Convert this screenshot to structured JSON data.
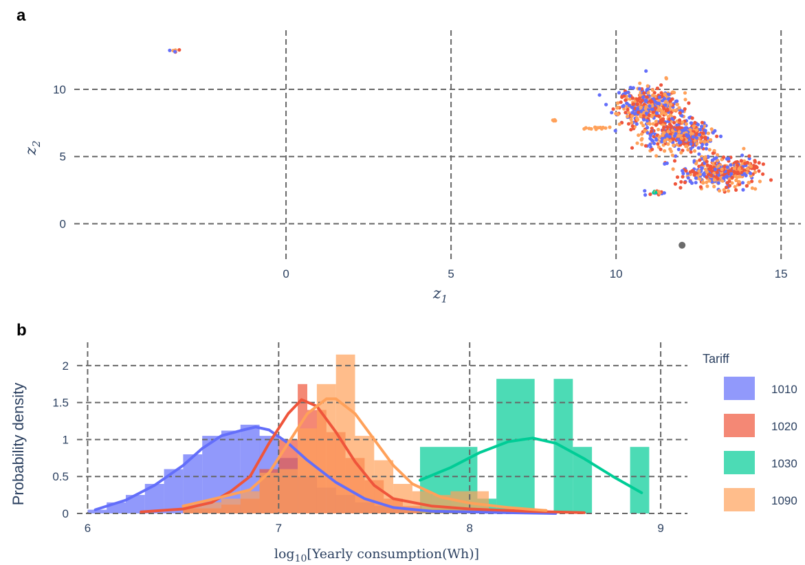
{
  "chart_data": [
    {
      "panel": "a",
      "type": "scatter",
      "xlabel": "z1",
      "ylabel": "z2",
      "xlim": [
        -7,
        15.6
      ],
      "ylim": [
        -3.3,
        14.6
      ],
      "xticks": [
        0,
        5,
        10,
        15
      ],
      "yticks": [
        0,
        5,
        10
      ],
      "grid": true,
      "colors": {
        "1010": "#636efa",
        "1020": "#ef553b",
        "1030": "#00cc96",
        "1090": "#ffa15a",
        "other": "#6b6b6b"
      },
      "clusters": [
        {
          "center": [
            -3.4,
            12.9
          ],
          "spread": [
            0.12,
            0.08
          ],
          "n": 6,
          "series": [
            "1090",
            "1010",
            "1020"
          ]
        },
        {
          "center": [
            8.1,
            7.7
          ],
          "spread": [
            0.06,
            0.03
          ],
          "n": 4,
          "series": [
            "1090"
          ]
        },
        {
          "center": [
            9.5,
            7.1
          ],
          "spread": [
            0.25,
            0.06
          ],
          "n": 14,
          "series": [
            "1090"
          ]
        },
        {
          "center": [
            11.0,
            8.7
          ],
          "spread": [
            0.45,
            0.7
          ],
          "n": 450,
          "series": [
            "1020",
            "1010",
            "1090"
          ]
        },
        {
          "center": [
            11.9,
            6.6
          ],
          "spread": [
            0.5,
            0.55
          ],
          "n": 420,
          "series": [
            "1020",
            "1010",
            "1090"
          ]
        },
        {
          "center": [
            13.2,
            3.8
          ],
          "spread": [
            0.55,
            0.55
          ],
          "n": 420,
          "series": [
            "1020",
            "1010",
            "1090"
          ]
        },
        {
          "center": [
            11.1,
            2.3
          ],
          "spread": [
            0.25,
            0.08
          ],
          "n": 18,
          "series": [
            "1010",
            "1020",
            "1030",
            "1090"
          ]
        }
      ],
      "outlier": {
        "x": 12.0,
        "y": -1.6,
        "series": "other"
      }
    },
    {
      "panel": "b",
      "type": "bar",
      "xlabel": "log10[Yearly consumption(Wh)]",
      "ylabel": "Probability density",
      "xlim": [
        5.93,
        9.14
      ],
      "ylim": [
        0,
        2.25
      ],
      "xticks": [
        6,
        7,
        8,
        9
      ],
      "yticks": [
        0,
        0.5,
        1,
        1.5,
        2
      ],
      "ytick_labels": [
        "0",
        "0.5",
        "1",
        "1.5",
        "2"
      ],
      "grid": true,
      "legend": {
        "title": "Tariff",
        "position": "right"
      },
      "series": [
        {
          "name": "1010",
          "color": "#636efa",
          "hist": [
            [
              6.0,
              6.1,
              0.05
            ],
            [
              6.1,
              6.2,
              0.15
            ],
            [
              6.2,
              6.3,
              0.25
            ],
            [
              6.3,
              6.4,
              0.4
            ],
            [
              6.4,
              6.5,
              0.6
            ],
            [
              6.5,
              6.6,
              0.8
            ],
            [
              6.6,
              6.7,
              1.05
            ],
            [
              6.7,
              6.8,
              1.12
            ],
            [
              6.8,
              6.9,
              1.2
            ],
            [
              6.9,
              7.0,
              1.05
            ],
            [
              7.0,
              7.1,
              0.75
            ],
            [
              7.1,
              7.2,
              0.5
            ],
            [
              7.2,
              7.3,
              0.35
            ],
            [
              7.3,
              7.4,
              0.25
            ],
            [
              7.4,
              7.5,
              0.15
            ],
            [
              7.5,
              7.6,
              0.1
            ],
            [
              7.6,
              7.7,
              0.06
            ],
            [
              7.7,
              7.8,
              0.04
            ],
            [
              7.8,
              8.4,
              0.02
            ]
          ],
          "curve_x": [
            6.04,
            6.2,
            6.35,
            6.5,
            6.6,
            6.7,
            6.8,
            6.88,
            6.95,
            7.05,
            7.15,
            7.3,
            7.45,
            7.6,
            7.8,
            8.0,
            8.2,
            8.45
          ],
          "curve_y": [
            0.05,
            0.18,
            0.38,
            0.65,
            0.88,
            1.05,
            1.12,
            1.17,
            1.13,
            0.95,
            0.72,
            0.42,
            0.2,
            0.08,
            0.03,
            0.02,
            0.01,
            0.0
          ]
        },
        {
          "name": "1020",
          "color": "#ef553b",
          "hist": [
            [
              6.5,
              6.6,
              0.07
            ],
            [
              6.6,
              6.7,
              0.07
            ],
            [
              6.7,
              6.8,
              0.12
            ],
            [
              6.8,
              6.9,
              0.2
            ],
            [
              6.9,
              7.0,
              0.6
            ],
            [
              7.0,
              7.1,
              1.0
            ],
            [
              7.1,
              7.15,
              1.75
            ],
            [
              7.15,
              7.25,
              1.4
            ],
            [
              7.25,
              7.35,
              1.1
            ],
            [
              7.35,
              7.45,
              0.75
            ],
            [
              7.45,
              7.55,
              0.45
            ],
            [
              7.55,
              7.65,
              0.2
            ],
            [
              7.65,
              7.75,
              0.1
            ],
            [
              7.75,
              8.0,
              0.06
            ],
            [
              8.0,
              8.4,
              0.03
            ]
          ],
          "curve_x": [
            6.28,
            6.5,
            6.65,
            6.75,
            6.85,
            6.95,
            7.05,
            7.12,
            7.2,
            7.3,
            7.4,
            7.5,
            7.6,
            7.8,
            8.0,
            8.3,
            8.6
          ],
          "curve_y": [
            0.02,
            0.06,
            0.15,
            0.3,
            0.5,
            0.95,
            1.35,
            1.54,
            1.45,
            1.1,
            0.7,
            0.38,
            0.2,
            0.1,
            0.06,
            0.03,
            0.01
          ]
        },
        {
          "name": "1030",
          "color": "#00cc96",
          "hist": [
            [
              7.74,
              8.04,
              0.9
            ],
            [
              8.04,
              8.14,
              0.2
            ],
            [
              8.14,
              8.34,
              1.82
            ],
            [
              8.44,
              8.54,
              1.82
            ],
            [
              8.54,
              8.64,
              0.9
            ],
            [
              8.84,
              8.94,
              0.9
            ]
          ],
          "curve_x": [
            7.74,
            7.9,
            8.05,
            8.2,
            8.33,
            8.45,
            8.6,
            8.75,
            8.9
          ],
          "curve_y": [
            0.45,
            0.62,
            0.82,
            0.97,
            1.02,
            0.95,
            0.74,
            0.5,
            0.28
          ]
        },
        {
          "name": "1090",
          "color": "#ffa15a",
          "hist": [
            [
              6.5,
              6.6,
              0.1
            ],
            [
              6.6,
              6.7,
              0.15
            ],
            [
              6.7,
              6.8,
              0.2
            ],
            [
              6.8,
              6.9,
              0.3
            ],
            [
              6.9,
              7.0,
              0.55
            ],
            [
              7.0,
              7.1,
              0.6
            ],
            [
              7.1,
              7.2,
              1.15
            ],
            [
              7.2,
              7.3,
              1.75
            ],
            [
              7.3,
              7.4,
              2.15
            ],
            [
              7.4,
              7.5,
              1.05
            ],
            [
              7.5,
              7.6,
              0.72
            ],
            [
              7.6,
              7.7,
              0.4
            ],
            [
              7.7,
              7.8,
              0.3
            ],
            [
              7.8,
              7.9,
              0.25
            ],
            [
              7.9,
              8.1,
              0.3
            ],
            [
              8.1,
              8.4,
              0.06
            ]
          ],
          "curve_x": [
            6.5,
            6.7,
            6.85,
            6.95,
            7.05,
            7.15,
            7.25,
            7.3,
            7.4,
            7.5,
            7.6,
            7.7,
            7.85,
            8.0,
            8.2,
            8.4
          ],
          "curve_y": [
            0.1,
            0.22,
            0.32,
            0.55,
            0.95,
            1.35,
            1.55,
            1.55,
            1.35,
            1.0,
            0.65,
            0.4,
            0.22,
            0.14,
            0.08,
            0.04
          ]
        }
      ]
    }
  ]
}
